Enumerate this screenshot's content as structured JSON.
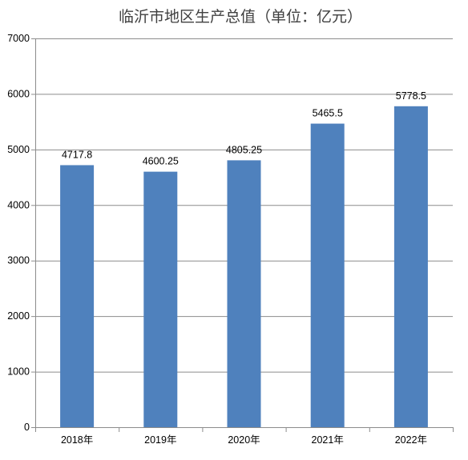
{
  "chart_data": {
    "type": "bar",
    "title": "临沂市地区生产总值（单位：亿元）",
    "categories": [
      "2018年",
      "2019年",
      "2020年",
      "2021年",
      "2022年"
    ],
    "values": [
      4717.8,
      4600.25,
      4805.25,
      5465.5,
      5778.5
    ],
    "value_labels": [
      "4717.8",
      "4600.25",
      "4805.25",
      "5465.5",
      "5778.5"
    ],
    "ylim": [
      0,
      7000
    ],
    "yticks": [
      0,
      1000,
      2000,
      3000,
      4000,
      5000,
      6000,
      7000
    ],
    "grid": true,
    "legend": "none",
    "bar_color": "#4f81bd"
  }
}
